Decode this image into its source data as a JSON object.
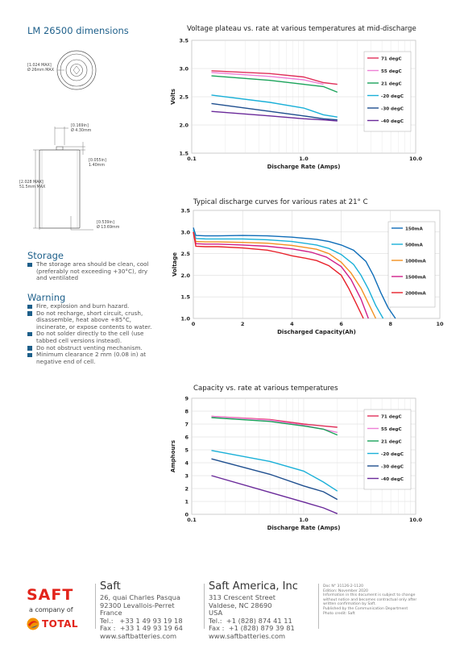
{
  "dimensions": {
    "title": "LM 26500 dimensions",
    "top_dia": [
      "[1.024 MAX]",
      "Ø 26mm MAX"
    ],
    "terminal_width": [
      "[0.169in]",
      "Ø 4.30mm"
    ],
    "terminal_height": [
      "[0.055in]",
      "1.40mm"
    ],
    "body_height": [
      "[2.028 MAX]",
      "51.5mm MAX"
    ],
    "body_dia": [
      "[0.539in]",
      "Ø 13.69mm"
    ]
  },
  "storage": {
    "title": "Storage",
    "items": [
      "The storage area should be clean, cool (preferably not exceeding +30°C), dry and ventilated"
    ]
  },
  "warning": {
    "title": "Warning",
    "items": [
      "Fire, explosion and burn hazard.",
      "Do not recharge, short circuit, crush, disassemble, heat above +85°C, incinerate, or expose contents to water.",
      "Do not solder directly to the cell (use tabbed cell versions instead).",
      "Do not obstruct venting mechanism.",
      "Minimum clearance 2 mm (0.08 in) at negative end of cell."
    ]
  },
  "chart_data": [
    {
      "type": "line",
      "title": "Voltage plateau vs. rate at various temperatures at mid-discharge",
      "xlabel": "Discharge Rate (Amps)",
      "ylabel": "Volts",
      "xscale": "log",
      "xlim": [
        0.1,
        10
      ],
      "ylim": [
        1.5,
        3.5
      ],
      "xticks": [
        "0.1",
        "1.0",
        "10.0"
      ],
      "yticks": [
        "1.5",
        "2.0",
        "2.5",
        "3.0",
        "3.5"
      ],
      "grid": true,
      "legend": "right",
      "series": [
        {
          "name": "71 degC",
          "color": "#e0305a",
          "x": [
            0.15,
            0.5,
            1.0,
            1.5,
            2.0
          ],
          "y": [
            2.96,
            2.91,
            2.85,
            2.75,
            2.72
          ]
        },
        {
          "name": "55 degC",
          "color": "#ee7fd6",
          "x": [
            0.15,
            0.5,
            1.0,
            1.5
          ],
          "y": [
            2.93,
            2.86,
            2.8,
            2.72
          ]
        },
        {
          "name": "21 degC",
          "color": "#1aa35a",
          "x": [
            0.15,
            0.5,
            1.0,
            1.5,
            2.0
          ],
          "y": [
            2.87,
            2.79,
            2.72,
            2.68,
            2.58
          ]
        },
        {
          "name": "-20 degC",
          "color": "#1ab0d8",
          "x": [
            0.15,
            0.5,
            1.0,
            1.5,
            2.0
          ],
          "y": [
            2.53,
            2.4,
            2.3,
            2.18,
            2.14
          ]
        },
        {
          "name": "-30 degC",
          "color": "#1f4f8f",
          "x": [
            0.15,
            0.5,
            1.0,
            1.5,
            2.0
          ],
          "y": [
            2.38,
            2.24,
            2.16,
            2.11,
            2.09
          ]
        },
        {
          "name": "-40 degC",
          "color": "#6a2a9a",
          "x": [
            0.15,
            0.5,
            1.0,
            1.5,
            2.0
          ],
          "y": [
            2.24,
            2.16,
            2.11,
            2.09,
            2.07
          ]
        }
      ]
    },
    {
      "type": "line",
      "title": "Typical discharge curves for various rates at 21° C",
      "xlabel": "Discharged Capacity(Ah)",
      "ylabel": "Voltage",
      "xlim": [
        0,
        10
      ],
      "ylim": [
        1.0,
        3.5
      ],
      "xticks": [
        "0",
        "2",
        "4",
        "6",
        "8",
        "10"
      ],
      "yticks": [
        "1.0",
        "1.5",
        "2.0",
        "2.5",
        "3.0",
        "3.5"
      ],
      "grid": true,
      "legend": "right",
      "series": [
        {
          "name": "150mA",
          "color": "#0f6db8",
          "x": [
            0,
            0.1,
            0.5,
            1,
            2,
            3,
            4,
            5,
            5.5,
            6,
            6.5,
            7,
            7.3,
            7.6,
            7.9,
            8.2
          ],
          "y": [
            3.1,
            2.92,
            2.91,
            2.91,
            2.92,
            2.91,
            2.88,
            2.83,
            2.78,
            2.7,
            2.58,
            2.32,
            2.0,
            1.6,
            1.25,
            1.0
          ]
        },
        {
          "name": "500mA",
          "color": "#1ab0d8",
          "x": [
            0,
            0.1,
            0.5,
            1,
            2,
            3,
            4,
            5,
            5.5,
            6,
            6.5,
            6.8,
            7.1,
            7.4,
            7.7
          ],
          "y": [
            3.05,
            2.85,
            2.84,
            2.84,
            2.84,
            2.82,
            2.78,
            2.7,
            2.62,
            2.48,
            2.25,
            2.0,
            1.68,
            1.3,
            1.0
          ]
        },
        {
          "name": "1000mA",
          "color": "#f39020",
          "x": [
            0,
            0.1,
            0.5,
            1,
            2,
            3,
            4,
            5,
            5.5,
            6,
            6.4,
            6.8,
            7.1,
            7.4
          ],
          "y": [
            3.0,
            2.78,
            2.77,
            2.77,
            2.76,
            2.74,
            2.69,
            2.6,
            2.5,
            2.3,
            2.05,
            1.7,
            1.35,
            1.0
          ]
        },
        {
          "name": "1500mA",
          "color": "#d0208a",
          "x": [
            0,
            0.1,
            0.5,
            1,
            2,
            3,
            4,
            4.8,
            5.4,
            6,
            6.4,
            6.8,
            7.1
          ],
          "y": [
            3.0,
            2.73,
            2.72,
            2.72,
            2.7,
            2.67,
            2.61,
            2.53,
            2.42,
            2.2,
            1.9,
            1.45,
            1.0
          ]
        },
        {
          "name": "2000mA",
          "color": "#e8202a",
          "x": [
            0,
            0.1,
            0.5,
            1,
            2,
            3,
            3.5,
            4,
            4.5,
            5,
            5.5,
            6,
            6.3,
            6.6,
            6.9
          ],
          "y": [
            3.0,
            2.67,
            2.66,
            2.66,
            2.63,
            2.58,
            2.52,
            2.45,
            2.4,
            2.34,
            2.22,
            2.0,
            1.7,
            1.35,
            1.0
          ]
        }
      ]
    },
    {
      "type": "line",
      "title": "Capacity vs. rate at various temperatures",
      "xlabel": "Discharge Rate (Amps)",
      "ylabel": "Amphours",
      "xscale": "log",
      "xlim": [
        0.1,
        10
      ],
      "ylim": [
        0,
        9
      ],
      "xticks": [
        "0.1",
        "1.0",
        "10.0"
      ],
      "yticks": [
        "0",
        "1",
        "2",
        "3",
        "4",
        "5",
        "6",
        "7",
        "8",
        "9"
      ],
      "grid": true,
      "legend": "right",
      "series": [
        {
          "name": "71 degC",
          "color": "#e0305a",
          "x": [
            0.15,
            0.5,
            1.0,
            1.5,
            2.0
          ],
          "y": [
            7.6,
            7.35,
            7.0,
            6.85,
            6.75
          ]
        },
        {
          "name": "55 degC",
          "color": "#ee7fd6",
          "x": [
            0.15,
            0.5,
            1.0,
            1.5,
            2.0
          ],
          "y": [
            7.6,
            7.3,
            6.9,
            6.6,
            6.35
          ]
        },
        {
          "name": "21 degC",
          "color": "#1aa35a",
          "x": [
            0.15,
            0.5,
            1.0,
            1.5,
            2.0
          ],
          "y": [
            7.5,
            7.2,
            6.85,
            6.6,
            6.15
          ]
        },
        {
          "name": "-20 degC",
          "color": "#1ab0d8",
          "x": [
            0.15,
            0.5,
            1.0,
            1.5,
            2.0
          ],
          "y": [
            4.95,
            4.1,
            3.35,
            2.5,
            1.8
          ]
        },
        {
          "name": "-30 degC",
          "color": "#1f4f8f",
          "x": [
            0.15,
            0.5,
            1.0,
            1.5,
            2.0
          ],
          "y": [
            4.3,
            3.1,
            2.2,
            1.75,
            1.15
          ]
        },
        {
          "name": "-40 degC",
          "color": "#6a2a9a",
          "x": [
            0.15,
            0.5,
            1.0,
            1.5,
            2.0
          ],
          "y": [
            3.0,
            1.7,
            0.95,
            0.5,
            0.05
          ]
        }
      ]
    }
  ],
  "footer": {
    "logo_text": "saFT",
    "logo_tagline": "a company of",
    "total_text": "TOTAL",
    "saft_name": "Saft",
    "saft_address": "26, quai Charles Pasqua\n92300 Levallois-Perret\nFrance\nTel.:   +33 1 49 93 19 18\nFax :  +33 1 49 93 19 64\nwww.saftbatteries.com",
    "us_name": "Saft America, Inc",
    "us_address": "313 Crescent Street\nValdese, NC 28690\nUSA\nTel.:  +1 (828) 874 41 11\nFax :  +1 (828) 879 39 81\nwww.saftbatteries.com",
    "doc_info": "Doc N° 31126-2-1120\nEdition: November 2020\nInformation in this document is subject to change\nwithout notice and becomes contractual only after\nwritten confirmation by Saft.\nPublished by the Communication Department\nPhoto credit: Saft",
    "colors": {
      "saft_red": "#e2231a",
      "total_red": "#e2231a",
      "total_orange": "#f39200",
      "total_blue": "#1d5aa0"
    }
  }
}
